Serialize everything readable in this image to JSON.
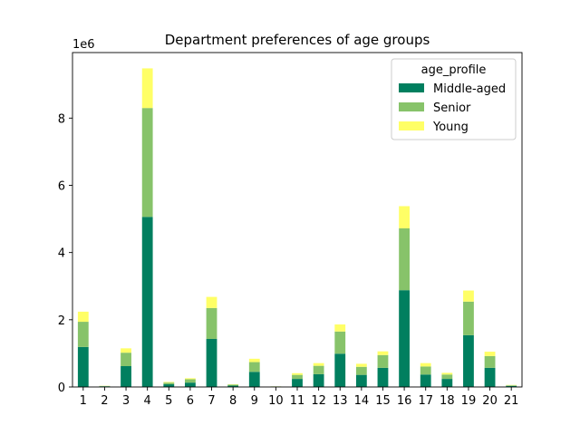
{
  "chart_data": {
    "type": "bar",
    "stacked": true,
    "title": "Department preferences of age groups",
    "scale_label": "1e6",
    "xlabel": "",
    "ylabel": "",
    "ylim": [
      0,
      9950000
    ],
    "yticks": [
      0,
      2000000,
      4000000,
      6000000,
      8000000
    ],
    "ytick_labels": [
      "0",
      "2",
      "4",
      "6",
      "8"
    ],
    "categories": [
      "1",
      "2",
      "3",
      "4",
      "5",
      "6",
      "7",
      "8",
      "9",
      "10",
      "11",
      "12",
      "13",
      "14",
      "15",
      "16",
      "17",
      "18",
      "19",
      "20",
      "21"
    ],
    "legend": {
      "title": "age_profile",
      "position": "top-right"
    },
    "grid": false,
    "series": [
      {
        "name": "Middle-aged",
        "color": "#007f5f",
        "values": [
          1190000,
          20000,
          620000,
          5060000,
          80000,
          130000,
          1430000,
          40000,
          450000,
          10000,
          240000,
          380000,
          990000,
          360000,
          570000,
          2880000,
          370000,
          240000,
          1540000,
          570000,
          30000
        ]
      },
      {
        "name": "Senior",
        "color": "#87c36a",
        "values": [
          750000,
          10000,
          400000,
          3240000,
          50000,
          100000,
          920000,
          30000,
          290000,
          5000,
          120000,
          250000,
          660000,
          240000,
          380000,
          1840000,
          240000,
          130000,
          1000000,
          350000,
          20000
        ]
      },
      {
        "name": "Young",
        "color": "#ffff66",
        "values": [
          300000,
          5000,
          130000,
          1180000,
          20000,
          30000,
          330000,
          10000,
          100000,
          3000,
          50000,
          80000,
          210000,
          90000,
          110000,
          660000,
          100000,
          50000,
          330000,
          130000,
          10000
        ]
      }
    ]
  }
}
